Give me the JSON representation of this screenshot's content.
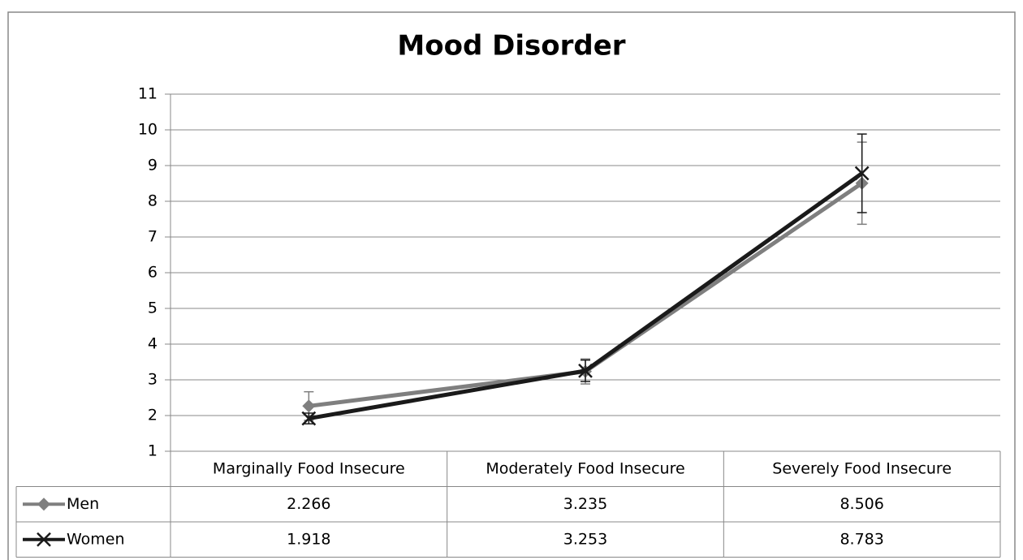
{
  "chart_data": {
    "type": "line",
    "title": "Mood Disorder",
    "categories": [
      "Marginally Food Insecure",
      "Moderately Food Insecure",
      "Severely Food Insecure"
    ],
    "series": [
      {
        "name": "Men",
        "color": "#7f7f7f",
        "marker": "diamond",
        "values": [
          2.266,
          3.235,
          8.506
        ],
        "errors": [
          0.4,
          0.35,
          1.15
        ]
      },
      {
        "name": "Women",
        "color": "#1a1a1a",
        "marker": "x",
        "values": [
          1.918,
          3.253,
          8.783
        ],
        "errors": [
          0.15,
          0.3,
          1.1
        ]
      }
    ],
    "ylim": [
      1,
      11
    ],
    "yticks": [
      1,
      2,
      3,
      4,
      5,
      6,
      7,
      8,
      9,
      10,
      11
    ],
    "grid": true,
    "data_table": true
  }
}
